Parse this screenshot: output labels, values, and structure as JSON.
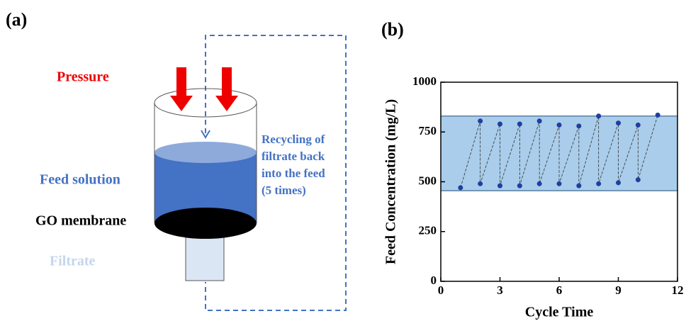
{
  "panels": {
    "a": "(a)",
    "b": "(b)"
  },
  "diagram": {
    "pressure": "Pressure",
    "feed_solution": "Feed solution",
    "membrane": "GO membrane",
    "filtrate": "Filtrate",
    "recycling": [
      "Recycling of",
      "filtrate back",
      "into the feed",
      "(5 times)"
    ]
  },
  "chart_data": {
    "type": "line",
    "xlabel": "Cycle Time",
    "ylabel": "Feed Concentration (mg/L)",
    "x": [
      1,
      2,
      2,
      3,
      3,
      4,
      4,
      5,
      5,
      6,
      6,
      7,
      7,
      8,
      8,
      9,
      9,
      10,
      10,
      11
    ],
    "values": [
      470,
      805,
      490,
      790,
      480,
      790,
      480,
      805,
      490,
      785,
      490,
      780,
      480,
      830,
      490,
      795,
      495,
      785,
      510,
      835
    ],
    "color": "#1f3fa0",
    "band": [
      455,
      830
    ],
    "band_color": "#a9cdea",
    "xlim": [
      0,
      12
    ],
    "ylim": [
      0,
      1000
    ],
    "xticks": [
      0,
      3,
      6,
      9,
      12
    ],
    "yticks": [
      0,
      250,
      500,
      750,
      1000
    ]
  }
}
